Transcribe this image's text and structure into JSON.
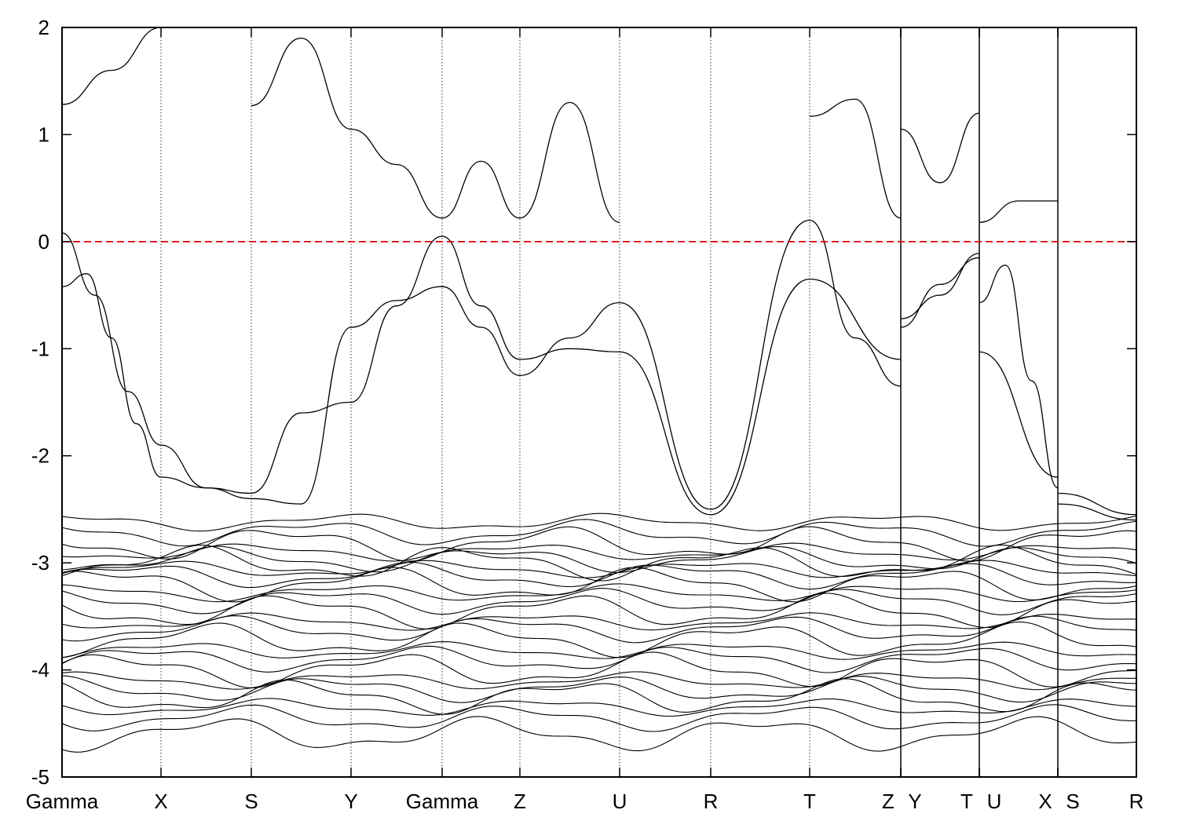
{
  "chart_data": {
    "type": "line",
    "title": "",
    "xlabel": "",
    "ylabel": "",
    "ylim": [
      -5,
      2
    ],
    "y_ticks": [
      "2",
      "1",
      "0",
      "-1",
      "-2",
      "-3",
      "-4",
      "-5"
    ],
    "y_tick_values": [
      2,
      1,
      0,
      -1,
      -2,
      -3,
      -4,
      -5
    ],
    "x_ticks": [
      "Gamma",
      "X",
      "S",
      "Y",
      "Gamma",
      "Z",
      "U",
      "R",
      "T",
      "Z",
      "Y",
      "T",
      "U",
      "X",
      "S",
      "R"
    ],
    "path_breaks": [
      "Z|Y",
      "T|U",
      "X|S"
    ],
    "fermi_level": 0,
    "grid": "vertical dotted lines at high-symmetry points",
    "colors": {
      "bands": "#000000",
      "fermi": "#dd0000",
      "grid": "#000000"
    },
    "series": [
      {
        "segments": [
          {
            "from": "Gamma",
            "to": "X",
            "y": [
              -0.42,
              -0.3,
              -0.9,
              -1.7,
              -2.2
            ]
          },
          {
            "from": "X",
            "to": "S",
            "y": [
              -2.2,
              -2.3,
              -2.4
            ]
          },
          {
            "from": "S",
            "to": "Y",
            "y": [
              -2.4,
              -2.45,
              -0.8
            ]
          },
          {
            "from": "Y",
            "to": "Gamma",
            "y": [
              -0.8,
              -0.55,
              -0.42
            ]
          },
          {
            "from": "Gamma",
            "to": "Z",
            "y": [
              -0.42,
              -0.8,
              -1.25
            ]
          },
          {
            "from": "Z",
            "to": "U",
            "y": [
              -1.25,
              -0.9,
              -0.57
            ]
          },
          {
            "from": "U",
            "to": "R",
            "y": [
              -0.57,
              -2.5
            ]
          },
          {
            "from": "R",
            "to": "T",
            "y": [
              -2.5,
              0.2
            ]
          },
          {
            "from": "T",
            "to": "Z",
            "y": [
              0.2,
              -0.9,
              -1.35
            ]
          },
          {
            "from": "Y",
            "to": "T",
            "y": [
              -0.72,
              -0.5,
              -0.11
            ]
          },
          {
            "from": "U",
            "to": "X",
            "y": [
              -0.57,
              -0.22,
              -1.3,
              -2.3
            ]
          },
          {
            "from": "S",
            "to": "R",
            "y": [
              -2.35,
              -2.55
            ]
          }
        ]
      },
      {
        "segments": [
          {
            "from": "Gamma",
            "to": "X",
            "y": [
              0.08,
              -0.5,
              -1.4,
              -1.9
            ]
          },
          {
            "from": "X",
            "to": "S",
            "y": [
              -1.9,
              -2.3,
              -2.35
            ]
          },
          {
            "from": "S",
            "to": "Y",
            "y": [
              -2.35,
              -1.6,
              -1.5
            ]
          },
          {
            "from": "Y",
            "to": "Gamma",
            "y": [
              -1.5,
              -0.6,
              0.05
            ]
          },
          {
            "from": "Gamma",
            "to": "Z",
            "y": [
              0.05,
              -0.6,
              -1.1
            ]
          },
          {
            "from": "Z",
            "to": "U",
            "y": [
              -1.1,
              -1.0,
              -1.03
            ]
          },
          {
            "from": "U",
            "to": "R",
            "y": [
              -1.03,
              -2.55
            ]
          },
          {
            "from": "R",
            "to": "T",
            "y": [
              -2.55,
              -0.35
            ]
          },
          {
            "from": "T",
            "to": "Z",
            "y": [
              -0.35,
              -1.1
            ]
          },
          {
            "from": "Y",
            "to": "T",
            "y": [
              -0.8,
              -0.4,
              -0.15
            ]
          },
          {
            "from": "U",
            "to": "X",
            "y": [
              -1.03,
              -2.2
            ]
          },
          {
            "from": "S",
            "to": "R",
            "y": [
              -2.45,
              -2.6
            ]
          }
        ]
      },
      {
        "segments": [
          {
            "from": "Gamma",
            "to": "X",
            "y": [
              1.28,
              1.6,
              2.0
            ]
          },
          {
            "from": "S",
            "to": "Y",
            "y": [
              1.27,
              1.9,
              1.05
            ]
          },
          {
            "from": "Y",
            "to": "Gamma",
            "y": [
              1.05,
              0.72,
              0.22
            ]
          },
          {
            "from": "Gamma",
            "to": "Z",
            "y": [
              0.22,
              0.75,
              0.22
            ]
          },
          {
            "from": "Z",
            "to": "U",
            "y": [
              0.22,
              1.3,
              0.18
            ]
          },
          {
            "from": "T",
            "to": "Z",
            "y": [
              1.17,
              1.33,
              0.22
            ]
          },
          {
            "from": "Y",
            "to": "T",
            "y": [
              1.05,
              0.55,
              1.2
            ]
          },
          {
            "from": "U",
            "to": "X",
            "y": [
              0.18,
              0.38,
              0.38
            ]
          }
        ]
      }
    ]
  }
}
